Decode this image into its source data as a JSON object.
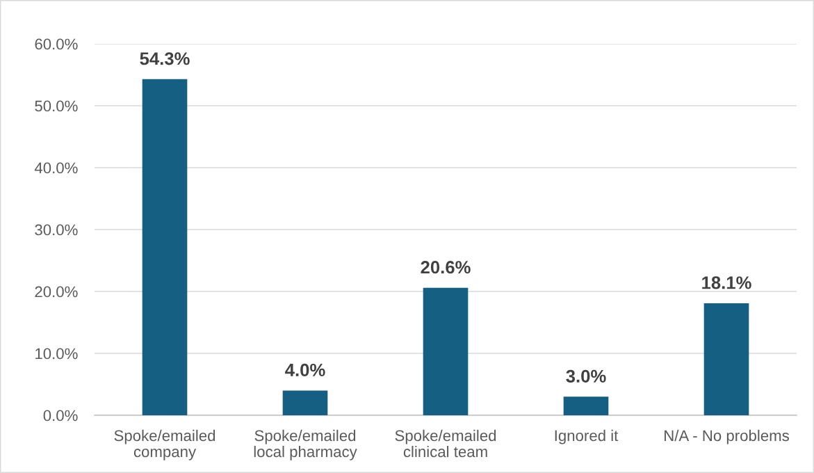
{
  "chart_data": {
    "type": "bar",
    "categories": [
      "Spoke/emailed\ncompany",
      "Spoke/emailed\nlocal pharmacy",
      "Spoke/emailed\nclinical team",
      "Ignored it",
      "N/A - No problems"
    ],
    "values": [
      54.3,
      4.0,
      20.6,
      3.0,
      18.1
    ],
    "color": "#156082",
    "value_labels": [
      "54.3%",
      "4.0%",
      "20.6%",
      "3.0%",
      "18.1%"
    ],
    "ylim": [
      0,
      60
    ],
    "yticks": [
      {
        "value": 0,
        "label": "0.0%"
      },
      {
        "value": 10,
        "label": "10.0%"
      },
      {
        "value": 20,
        "label": "20.0%"
      },
      {
        "value": 30,
        "label": "30.0%"
      },
      {
        "value": 40,
        "label": "40.0%"
      },
      {
        "value": 50,
        "label": "50.0%"
      },
      {
        "value": 60,
        "label": "60.0%"
      }
    ],
    "grid": "y",
    "legend": false
  }
}
